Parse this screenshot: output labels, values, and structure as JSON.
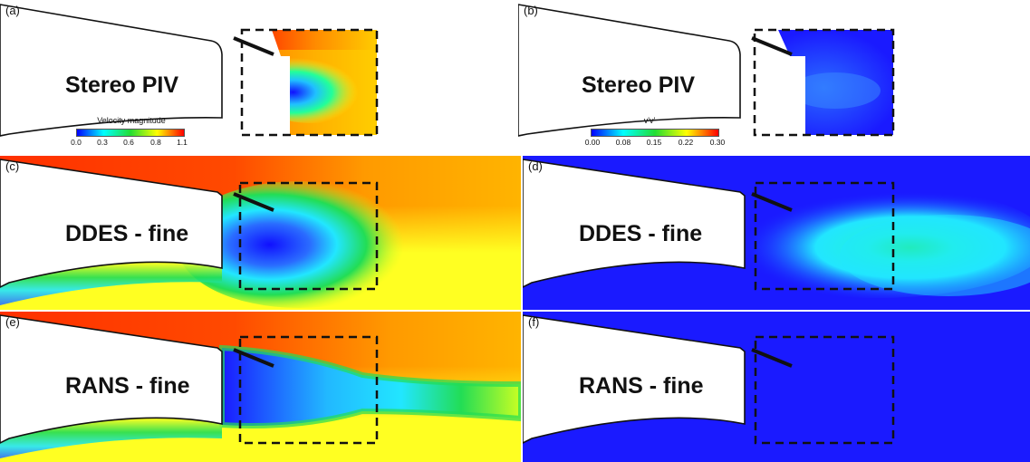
{
  "panels": {
    "a": {
      "label": "(a)",
      "method": "Stereo PIV"
    },
    "b": {
      "label": "(b)",
      "method": "Stereo PIV"
    },
    "c": {
      "label": "(c)",
      "method": "DDES - fine"
    },
    "d": {
      "label": "(d)",
      "method": "DDES -  fine"
    },
    "e": {
      "label": "(e)",
      "method": "RANS - fine"
    },
    "f": {
      "label": "(f)",
      "method": "RANS - fine"
    }
  },
  "colorbars": {
    "velocity": {
      "title": "Velocity magnitude",
      "ticks": [
        "0.0",
        "0.3",
        "0.6",
        "0.8",
        "1.1"
      ]
    },
    "stress": {
      "title": "v'v'",
      "ticks": [
        "0.00",
        "0.08",
        "0.15",
        "0.22",
        "0.30"
      ]
    }
  },
  "colors": {
    "blue": "#1a1aff",
    "cyan": "#22ffee",
    "green": "#22dd33",
    "yellow": "#ffff22",
    "orange": "#ff9a00",
    "red": "#ff1a00"
  }
}
